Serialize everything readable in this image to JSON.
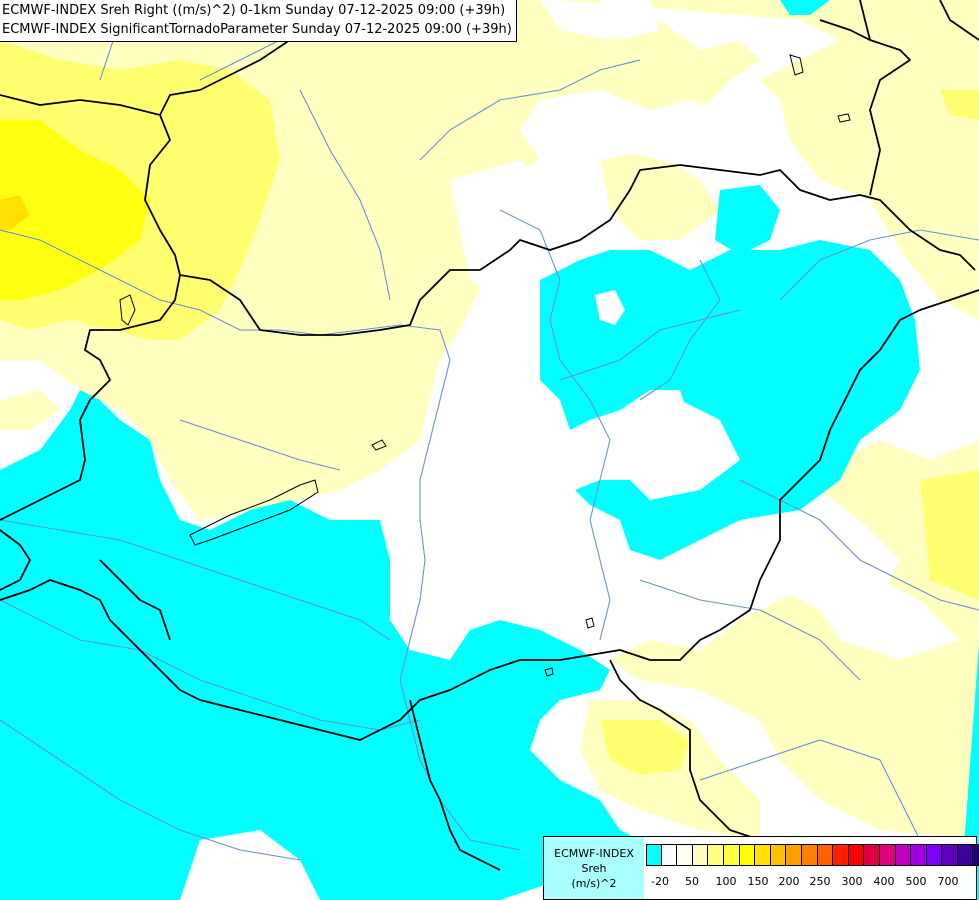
{
  "header": {
    "line1": "ECMWF-INDEX Sreh Right ((m/s)^2) 0-1km Sunday 07-12-2025 09:00 (+39h)",
    "line2": "ECMWF-INDEX SignificantTornadoParameter Sunday 07-12-2025 09:00 (+39h)"
  },
  "legend": {
    "title_line1": "ECMWF-INDEX",
    "title_line2": "Sreh",
    "title_line3": "(m/s)^2",
    "colors": [
      "#00ffff",
      "#ffffff",
      "#fffff0",
      "#ffffc0",
      "#ffff80",
      "#ffff40",
      "#ffff00",
      "#ffe000",
      "#ffc000",
      "#ffa000",
      "#ff8000",
      "#ff6000",
      "#ff2000",
      "#ff0000",
      "#e00040",
      "#e00080",
      "#c000c0",
      "#a000e0",
      "#8000ff",
      "#6000c0",
      "#4000a0",
      "#200080",
      "#000060"
    ],
    "tick_labels": [
      "-20",
      "50",
      "100",
      "150",
      "200",
      "250",
      "300",
      "400",
      "500",
      "700"
    ]
  },
  "map": {
    "cyan_color": "#00ffff",
    "pale_yellow_color": "#ffffc0",
    "yellow_color": "#ffff70",
    "bright_yellow_color": "#ffff00",
    "border_color": "#000000",
    "river_color": "#6a8fd8"
  }
}
